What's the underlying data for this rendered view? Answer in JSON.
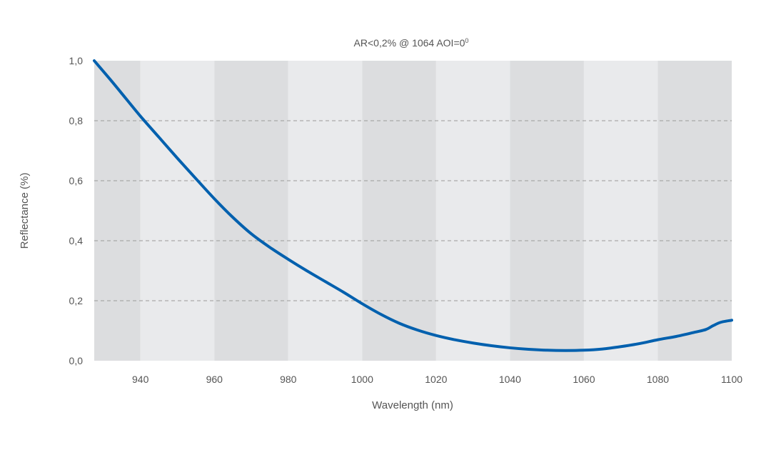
{
  "chart_data": {
    "type": "line",
    "title": "AR<0,2% @ 1064 AOI=0",
    "title_superscript": "0",
    "xlabel": "Wavelength (nm)",
    "ylabel": "Reflectance (%)",
    "xlim": [
      927.5,
      1100
    ],
    "ylim": [
      0,
      1.0
    ],
    "x_ticks": [
      940,
      960,
      980,
      1000,
      1020,
      1040,
      1060,
      1080,
      1100
    ],
    "x_tick_labels": [
      "940",
      "960",
      "980",
      "1000",
      "1020",
      "1040",
      "1060",
      "1080",
      "1100"
    ],
    "y_ticks": [
      0,
      0.2,
      0.4,
      0.6,
      0.8,
      1.0
    ],
    "y_tick_labels": [
      "0,0",
      "0,2",
      "0,4",
      "0,6",
      "0,8",
      "1,0"
    ],
    "grid": "horizontal dashed",
    "background_bands": [
      {
        "from": 927.5,
        "to": 940,
        "shade": "dark"
      },
      {
        "from": 940,
        "to": 960,
        "shade": "light"
      },
      {
        "from": 960,
        "to": 980,
        "shade": "dark"
      },
      {
        "from": 980,
        "to": 1000,
        "shade": "light"
      },
      {
        "from": 1000,
        "to": 1020,
        "shade": "dark"
      },
      {
        "from": 1020,
        "to": 1040,
        "shade": "light"
      },
      {
        "from": 1040,
        "to": 1060,
        "shade": "dark"
      },
      {
        "from": 1060,
        "to": 1080,
        "shade": "light"
      },
      {
        "from": 1080,
        "to": 1100,
        "shade": "dark"
      }
    ],
    "series": [
      {
        "color": "#0060ae",
        "x": [
          927.5,
          932,
          936,
          940,
          945,
          950,
          955,
          960,
          965,
          970,
          975,
          980,
          985,
          990,
          995,
          1000,
          1005,
          1010,
          1015,
          1020,
          1025,
          1030,
          1035,
          1040,
          1045,
          1050,
          1055,
          1060,
          1065,
          1070,
          1075,
          1080,
          1085,
          1090,
          1093,
          1095,
          1097,
          1100
        ],
        "y": [
          1.0,
          0.935,
          0.875,
          0.815,
          0.745,
          0.675,
          0.607,
          0.54,
          0.478,
          0.423,
          0.378,
          0.338,
          0.3,
          0.264,
          0.228,
          0.19,
          0.155,
          0.125,
          0.102,
          0.084,
          0.07,
          0.059,
          0.05,
          0.043,
          0.038,
          0.035,
          0.034,
          0.035,
          0.039,
          0.047,
          0.057,
          0.07,
          0.081,
          0.095,
          0.104,
          0.117,
          0.128,
          0.135
        ]
      }
    ]
  },
  "colors": {
    "band_dark": "#dcdddf",
    "band_light": "#e9eaec",
    "grid": "#9a9a9a",
    "line": "#0060ae",
    "text": "#555555"
  }
}
